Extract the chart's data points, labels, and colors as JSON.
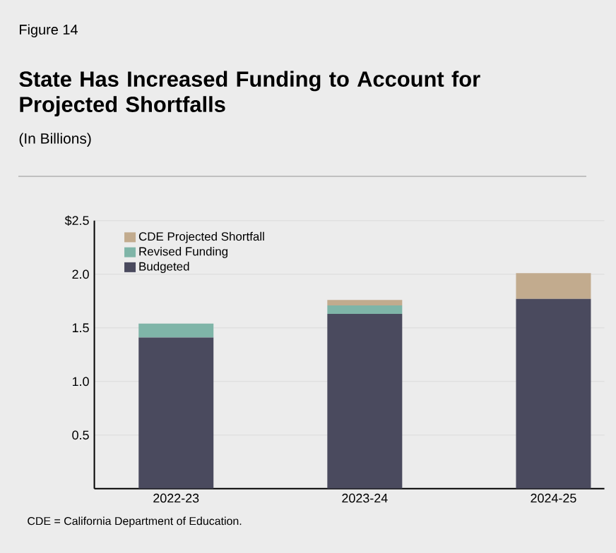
{
  "chart_data": {
    "type": "bar",
    "stacked": true,
    "title": "State Has Increased Funding to Account for Projected Shortfalls",
    "subtitle": "(In Billions)",
    "categories": [
      "2022-23",
      "2023-24",
      "2024-25"
    ],
    "series": [
      {
        "name": "Budgeted",
        "color": "#4a4a5e",
        "values": [
          1.41,
          1.63,
          1.77
        ]
      },
      {
        "name": "Revised Funding",
        "color": "#7fb5a8",
        "values": [
          0.13,
          0.08,
          0
        ]
      },
      {
        "name": "CDE Projected Shortfall",
        "color": "#c2ab8e",
        "values": [
          0,
          0.05,
          0.24
        ]
      }
    ],
    "ylim": [
      0,
      2.5
    ],
    "yticks": [
      {
        "value": 0.5,
        "label": "0.5"
      },
      {
        "value": 1.0,
        "label": "1.0"
      },
      {
        "value": 1.5,
        "label": "1.5"
      },
      {
        "value": 2.0,
        "label": "2.0"
      },
      {
        "value": 2.5,
        "label": "$2.5"
      }
    ],
    "grid": "y",
    "legend": "top left",
    "annotations": [
      "Figure 14",
      "CDE = California Department of Education."
    ]
  }
}
